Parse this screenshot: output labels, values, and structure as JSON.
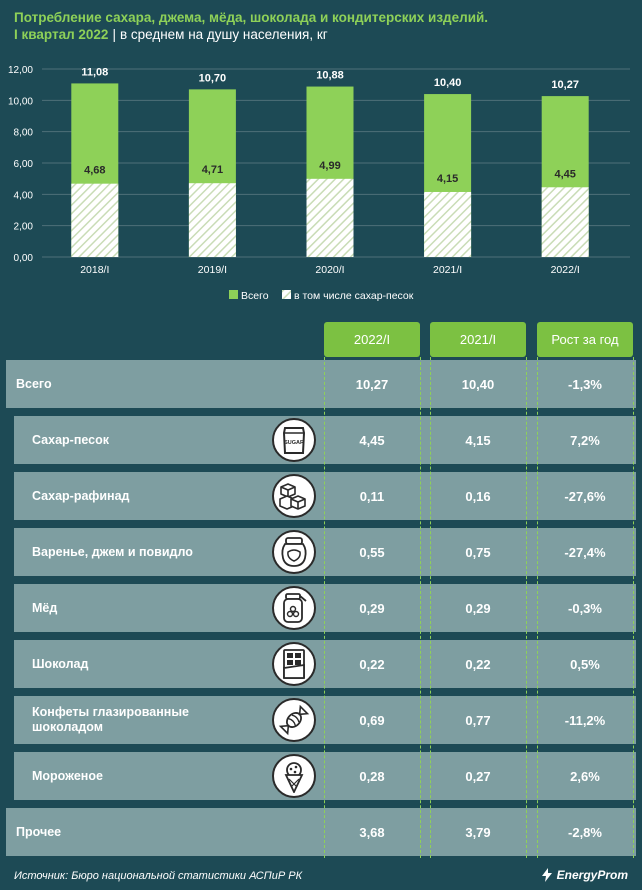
{
  "header": {
    "title": "Потребление сахара, джема, мёда, шоколада и кондитерских изделий.",
    "period": "I квартал 2022",
    "separator": "|",
    "unit_note": "в среднем на душу населения, кг"
  },
  "chart_data": {
    "type": "bar",
    "categories": [
      "2018/I",
      "2019/I",
      "2020/I",
      "2021/I",
      "2022/I"
    ],
    "series": [
      {
        "name": "Всего",
        "values": [
          11.08,
          10.7,
          10.88,
          10.4,
          10.27
        ],
        "labels": [
          "11,08",
          "10,70",
          "10,88",
          "10,40",
          "10,27"
        ],
        "color": "#8ed158"
      },
      {
        "name": "в том числе сахар-песок",
        "values": [
          4.68,
          4.71,
          4.99,
          4.15,
          4.45
        ],
        "labels": [
          "4,68",
          "4,71",
          "4,99",
          "4,15",
          "4,45"
        ],
        "color": "#ffffff",
        "pattern": "hatched"
      }
    ],
    "ylim": [
      0,
      12
    ],
    "yticks": [
      "0,00",
      "2,00",
      "4,00",
      "6,00",
      "8,00",
      "10,00",
      "12,00"
    ],
    "grid": true,
    "legend": "bottom"
  },
  "table": {
    "columns": [
      "2022/I",
      "2021/I",
      "Рост за год"
    ],
    "rows": [
      {
        "label": "Всего",
        "icon": "",
        "values": [
          "10,27",
          "10,40",
          "-1,3%"
        ]
      },
      {
        "label": "Сахар-песок",
        "icon": "sugar-bag-icon",
        "icon_text": "SUGAR",
        "values": [
          "4,45",
          "4,15",
          "7,2%"
        ]
      },
      {
        "label": "Сахар-рафинад",
        "icon": "sugar-cubes-icon",
        "values": [
          "0,11",
          "0,16",
          "-27,6%"
        ]
      },
      {
        "label": "Варенье, джем и повидло",
        "icon": "jam-jar-icon",
        "values": [
          "0,55",
          "0,75",
          "-27,4%"
        ]
      },
      {
        "label": "Мёд",
        "icon": "honey-jar-icon",
        "values": [
          "0,29",
          "0,29",
          "-0,3%"
        ]
      },
      {
        "label": "Шоколад",
        "icon": "chocolate-bar-icon",
        "values": [
          "0,22",
          "0,22",
          "0,5%"
        ]
      },
      {
        "label": "Конфеты глазированные шоколадом",
        "icon": "candy-icon",
        "values": [
          "0,69",
          "0,77",
          "-11,2%"
        ]
      },
      {
        "label": "Мороженое",
        "icon": "ice-cream-icon",
        "values": [
          "0,28",
          "0,27",
          "2,6%"
        ]
      },
      {
        "label": "Прочее",
        "icon": "",
        "values": [
          "3,68",
          "3,79",
          "-2,8%"
        ]
      }
    ]
  },
  "footer": {
    "source": "Источник: Бюро национальной статистики АСПиР РК",
    "logo_text": "EnergyProm"
  },
  "colors": {
    "background": "#1d4a55",
    "accent_green": "#8ed158",
    "row_bg": "#7e9ea1",
    "header_green": "#7cc142"
  }
}
